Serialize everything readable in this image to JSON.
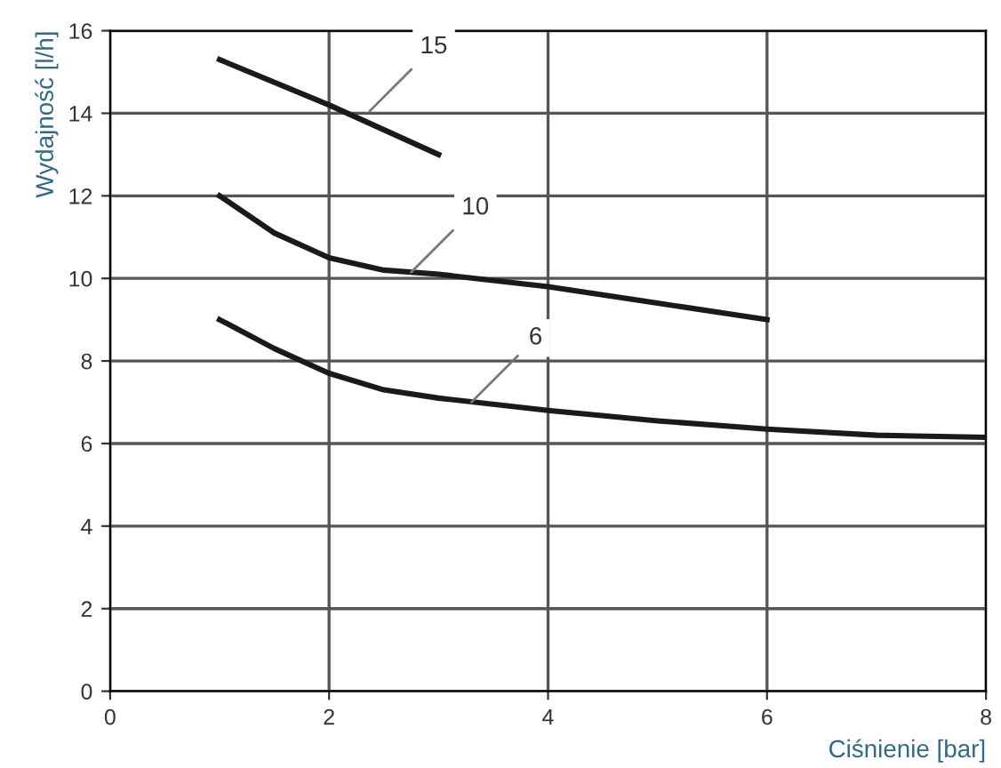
{
  "chart_data": {
    "type": "line",
    "xlabel": "Ciśnienie [bar]",
    "ylabel": "Wydajność [l/h]",
    "xlim": [
      0,
      8
    ],
    "ylim": [
      0,
      16
    ],
    "xticks": [
      0,
      2,
      4,
      6,
      8
    ],
    "yticks": [
      0,
      2,
      4,
      6,
      8,
      10,
      12,
      14,
      16
    ],
    "grid": true,
    "marker": "none",
    "line_style": "solid",
    "series": [
      {
        "color": "#1a1a1a",
        "x": [
          1,
          2,
          3
        ],
        "values": [
          15.3,
          14.2,
          13.0
        ]
      },
      {
        "color": "#1a1a1a",
        "x": [
          1,
          1.5,
          2,
          2.5,
          3,
          4,
          5,
          6
        ],
        "values": [
          12,
          11.1,
          10.5,
          10.2,
          10.1,
          9.8,
          9.4,
          9.0
        ]
      },
      {
        "color": "#1a1a1a",
        "x": [
          1,
          1.5,
          2,
          2.5,
          3,
          4,
          5,
          6,
          7,
          8
        ],
        "values": [
          9,
          8.3,
          7.7,
          7.3,
          7.1,
          6.8,
          6.55,
          6.35,
          6.2,
          6.15
        ]
      }
    ],
    "annotations": [
      {
        "text": "15",
        "x": 2.37,
        "y": 14.05
      },
      {
        "text": "10",
        "x": 2.75,
        "y": 10.15
      },
      {
        "text": "6",
        "x": 3.3,
        "y": 7.0
      }
    ]
  }
}
